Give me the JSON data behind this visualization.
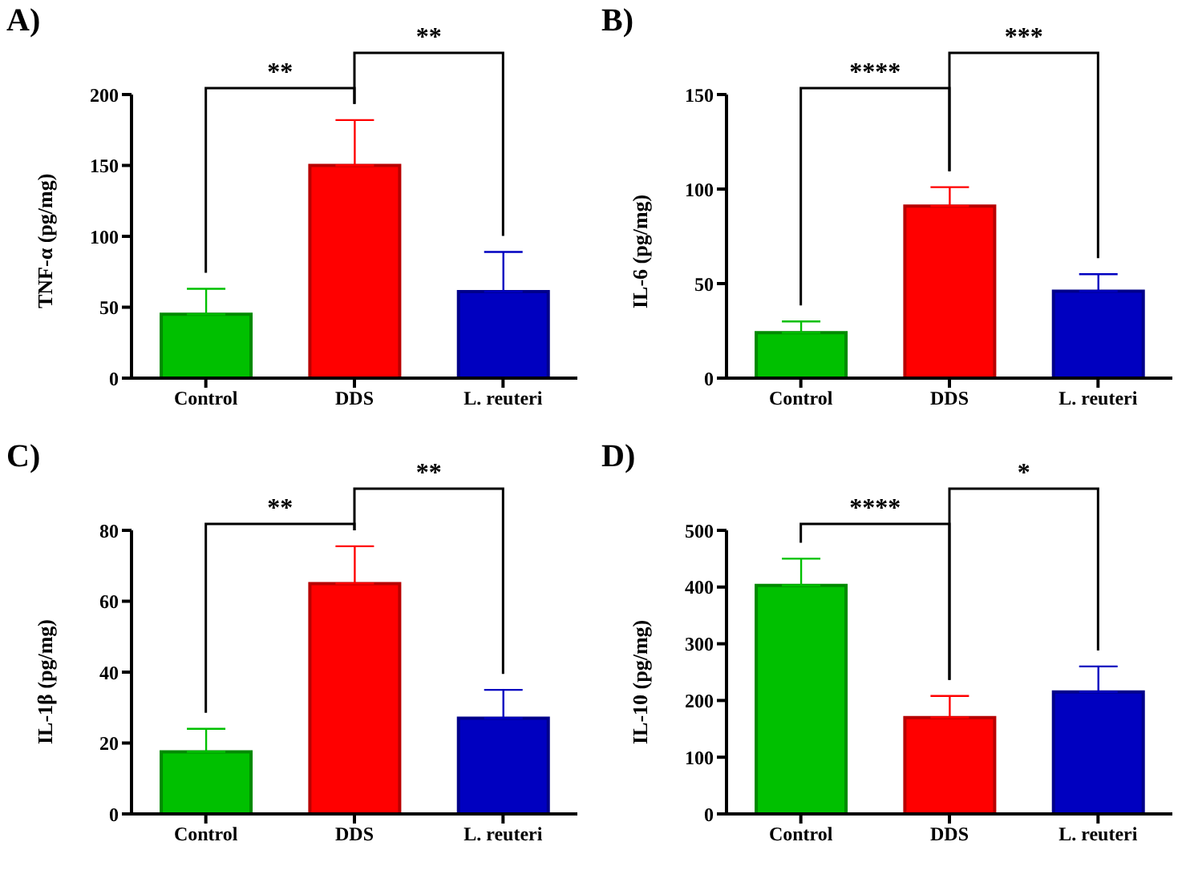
{
  "chart_data": [
    {
      "type": "bar",
      "title": "A)",
      "ylabel": "TNF-α (pg/mg)",
      "categories": [
        "Control",
        "DDS",
        "L. reuteri"
      ],
      "values": [
        45,
        150,
        61
      ],
      "errors": [
        [
          45,
          63
        ],
        [
          150,
          182
        ],
        [
          61,
          89
        ]
      ],
      "colors": [
        "#00c000",
        "#ff0000",
        "#0000c0"
      ],
      "ylim": [
        0,
        200
      ],
      "yticks": [
        0,
        50,
        100,
        150,
        200
      ],
      "grid": false,
      "annotations": [
        "**",
        "**"
      ]
    },
    {
      "type": "bar",
      "title": "B)",
      "ylabel": "IL-6 (pg/mg)",
      "categories": [
        "Control",
        "DDS",
        "L. reuteri"
      ],
      "values": [
        24,
        91,
        46
      ],
      "errors": [
        [
          24,
          30
        ],
        [
          91,
          101
        ],
        [
          46,
          55
        ]
      ],
      "colors": [
        "#00c000",
        "#ff0000",
        "#0000c0"
      ],
      "ylim": [
        0,
        150
      ],
      "yticks": [
        0,
        50,
        100,
        150
      ],
      "grid": false,
      "annotations": [
        "****",
        "***"
      ]
    },
    {
      "type": "bar",
      "title": "C)",
      "ylabel": "IL-1β (pg/mg)",
      "categories": [
        "Control",
        "DDS",
        "L. reuteri"
      ],
      "values": [
        17.5,
        65,
        27
      ],
      "errors": [
        [
          17.5,
          24
        ],
        [
          65,
          75.5
        ],
        [
          27,
          35
        ]
      ],
      "colors": [
        "#00c000",
        "#ff0000",
        "#0000c0"
      ],
      "ylim": [
        0,
        80
      ],
      "yticks": [
        0,
        20,
        40,
        60,
        80
      ],
      "grid": false,
      "annotations": [
        "**",
        "**"
      ]
    },
    {
      "type": "bar",
      "title": "D)",
      "ylabel": "IL-10 (pg/mg)",
      "categories": [
        "Control",
        "DDS",
        "L. reuteri"
      ],
      "values": [
        403,
        170,
        215
      ],
      "errors": [
        [
          403,
          450
        ],
        [
          170,
          208
        ],
        [
          215,
          260
        ]
      ],
      "colors": [
        "#00c000",
        "#ff0000",
        "#0000c0"
      ],
      "ylim": [
        0,
        500
      ],
      "yticks": [
        0,
        100,
        200,
        300,
        400,
        500
      ],
      "grid": false,
      "annotations": [
        "****",
        "*"
      ]
    }
  ]
}
